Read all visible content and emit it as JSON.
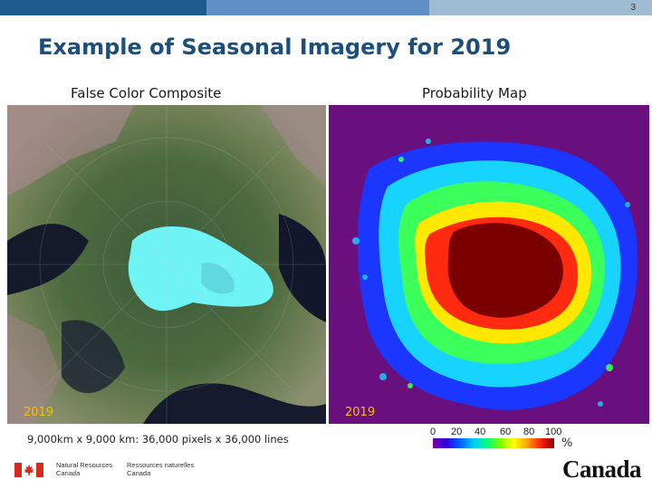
{
  "page_number": "3",
  "title": "Example of Seasonal Imagery for 2019",
  "left_panel": {
    "caption": "False Color Composite",
    "year": "2019"
  },
  "right_panel": {
    "caption": "Probability Map",
    "year": "2019"
  },
  "dimensions_text": "9,000km x 9,000 km: 36,000 pixels x 36,000 lines",
  "legend": {
    "ticks": [
      "0",
      "20",
      "40",
      "60",
      "80",
      "100"
    ],
    "unit": "%"
  },
  "footer": {
    "dept_en_line1": "Natural Resources",
    "dept_en_line2": "Canada",
    "dept_fr_line1": "Ressources naturelles",
    "dept_fr_line2": "Canada",
    "wordmark": "Canada"
  },
  "colors": {
    "title": "#1d4f7c",
    "bar_dark": "#1f5b8e",
    "bar_mid": "#5f8fc4",
    "bar_light": "#9fbcd2",
    "year_label": "#f2c200",
    "prob_background": "#6a0f7e",
    "flag_red": "#d52b1e"
  }
}
